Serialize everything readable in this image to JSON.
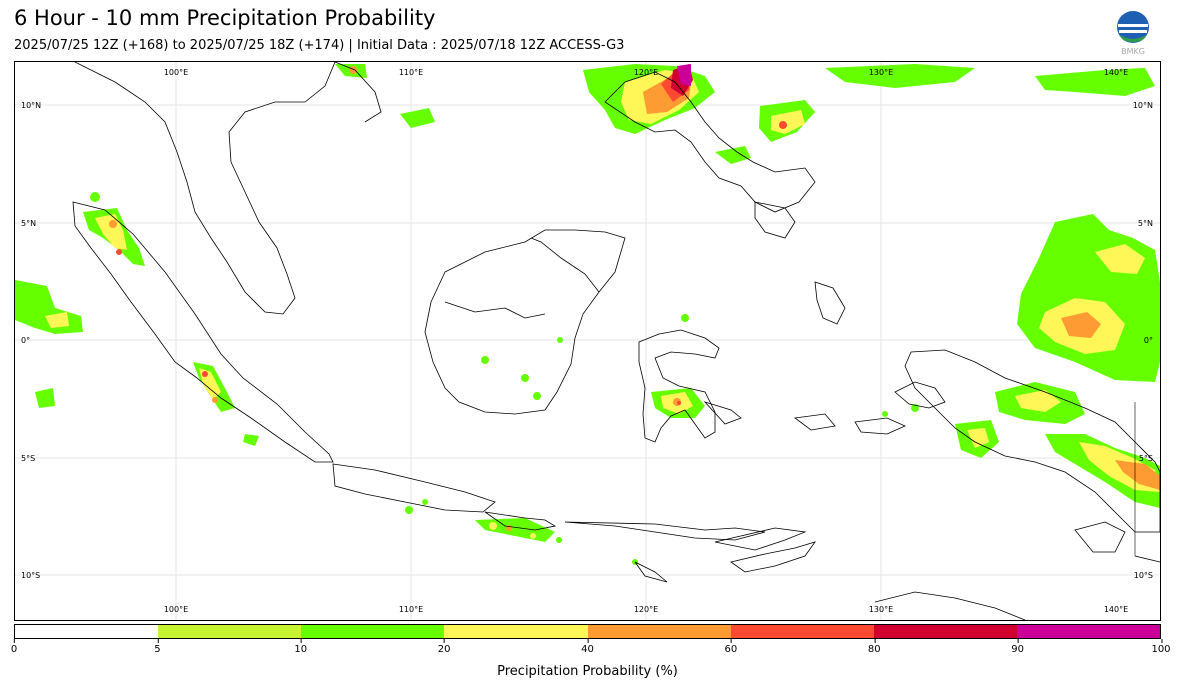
{
  "header": {
    "title": "6 Hour - 10 mm Precipitation Probability",
    "subtitle": "2025/07/25 12Z (+168) to 2025/07/25 18Z (+174) | Initial Data : 2025/07/18 12Z ACCESS-G3",
    "logo_text": "BMKG"
  },
  "map": {
    "lon_labels": [
      "100°E",
      "110°E",
      "120°E",
      "130°E",
      "140°E"
    ],
    "lat_labels": [
      "10°N",
      "5°N",
      "0°",
      "5°S",
      "10°S"
    ],
    "gridline_color": "#e6e6e6",
    "extent": {
      "lon": [
        94,
        143
      ],
      "lat": [
        -12.5,
        11.3
      ]
    }
  },
  "colorbar": {
    "label": "Precipitation Probability (%)",
    "ticks": [
      "0",
      "5",
      "10",
      "20",
      "40",
      "60",
      "80",
      "90",
      "100"
    ],
    "bins": [
      {
        "from": "0",
        "to": "5",
        "color": "#ffffff"
      },
      {
        "from": "5",
        "to": "10",
        "color": "#c6f431"
      },
      {
        "from": "10",
        "to": "20",
        "color": "#66ff00"
      },
      {
        "from": "20",
        "to": "40",
        "color": "#fff757"
      },
      {
        "from": "40",
        "to": "60",
        "color": "#ff9b33"
      },
      {
        "from": "60",
        "to": "80",
        "color": "#ff4a33"
      },
      {
        "from": "80",
        "to": "90",
        "color": "#d2002e"
      },
      {
        "from": "90",
        "to": "100",
        "color": "#cc0099"
      }
    ]
  }
}
